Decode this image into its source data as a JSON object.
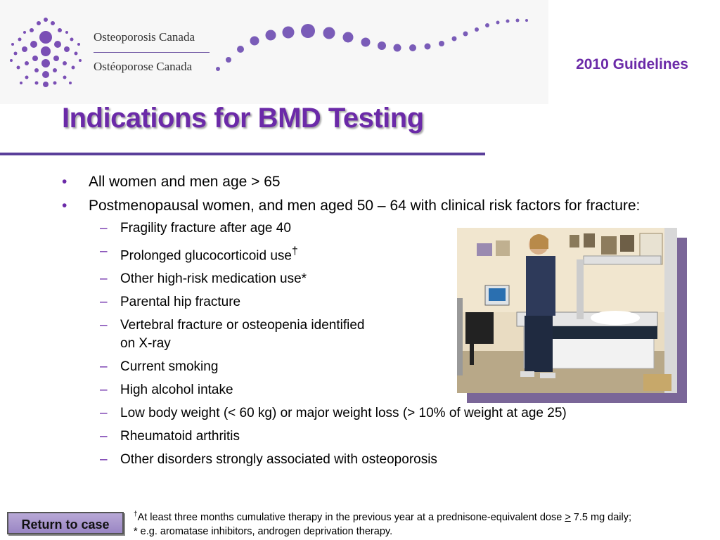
{
  "header": {
    "org_name_en": "Osteoporosis Canada",
    "org_name_fr": "Ostéoporose Canada",
    "guidelines_label": "2010 Guidelines"
  },
  "slide": {
    "title": "Indications for BMD Testing",
    "bullets": [
      {
        "text": "All women and men age > 65"
      },
      {
        "text": "Postmenopausal women, and men aged 50 – 64 with clinical risk factors for fracture:"
      }
    ],
    "risk_factors": [
      "Fragility fracture after age 40",
      "Prolonged glucocorticoid use",
      "Other high-risk medication use*",
      "Parental hip fracture",
      "Vertebral fracture or osteopenia identified on X-ray",
      "Current smoking",
      "High alcohol intake",
      "Low body weight (< 60 kg) or major weight loss (> 10% of weight at age 25)",
      "Rheumatoid arthritis",
      "Other disorders strongly associated with osteoporosis"
    ],
    "dagger": "†"
  },
  "footer": {
    "return_button": "Return to case",
    "footnote_line1_a": "At least three months cumulative therapy in the previous year at a prednisone-equivalent dose ",
    "footnote_ge": ">",
    "footnote_line1_b": " 7.5 mg daily;",
    "footnote_line2": "* e.g. aromatase inhibitors, androgen deprivation therapy."
  },
  "colors": {
    "accent": "#6b2aa8",
    "rule": "#5a3e9a",
    "button": "#a996cc"
  }
}
